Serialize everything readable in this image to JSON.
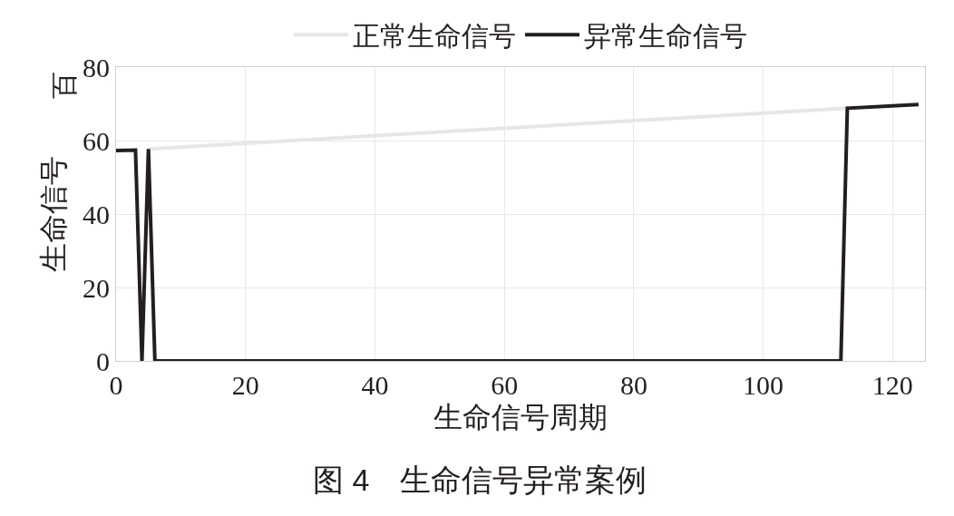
{
  "chart_data": {
    "type": "line",
    "xlabel": "生命信号周期",
    "ylabel": "生命信号",
    "annotations": [
      "百",
      "图 4　生命信号异常案例"
    ],
    "series": [
      {
        "name": "正常生命信号",
        "color": "#e6e6e6",
        "x": [
          5,
          113
        ],
        "values": [
          57.7,
          68.8
        ]
      },
      {
        "name": "异常生命信号",
        "color": "#231f20",
        "x": [
          0,
          3,
          4,
          5,
          6,
          112,
          113,
          124
        ],
        "values": [
          57.3,
          57.4,
          0,
          57.7,
          0,
          0,
          68.8,
          69.8
        ]
      }
    ],
    "xlim": [
      0,
      125
    ],
    "xticks": [
      0,
      20,
      40,
      60,
      80,
      100,
      120
    ],
    "ylim": [
      0,
      80
    ],
    "yticks": [
      0,
      20,
      40,
      60,
      80
    ],
    "grid": true,
    "legend": "top",
    "marker": "none",
    "line_style": "solid"
  }
}
